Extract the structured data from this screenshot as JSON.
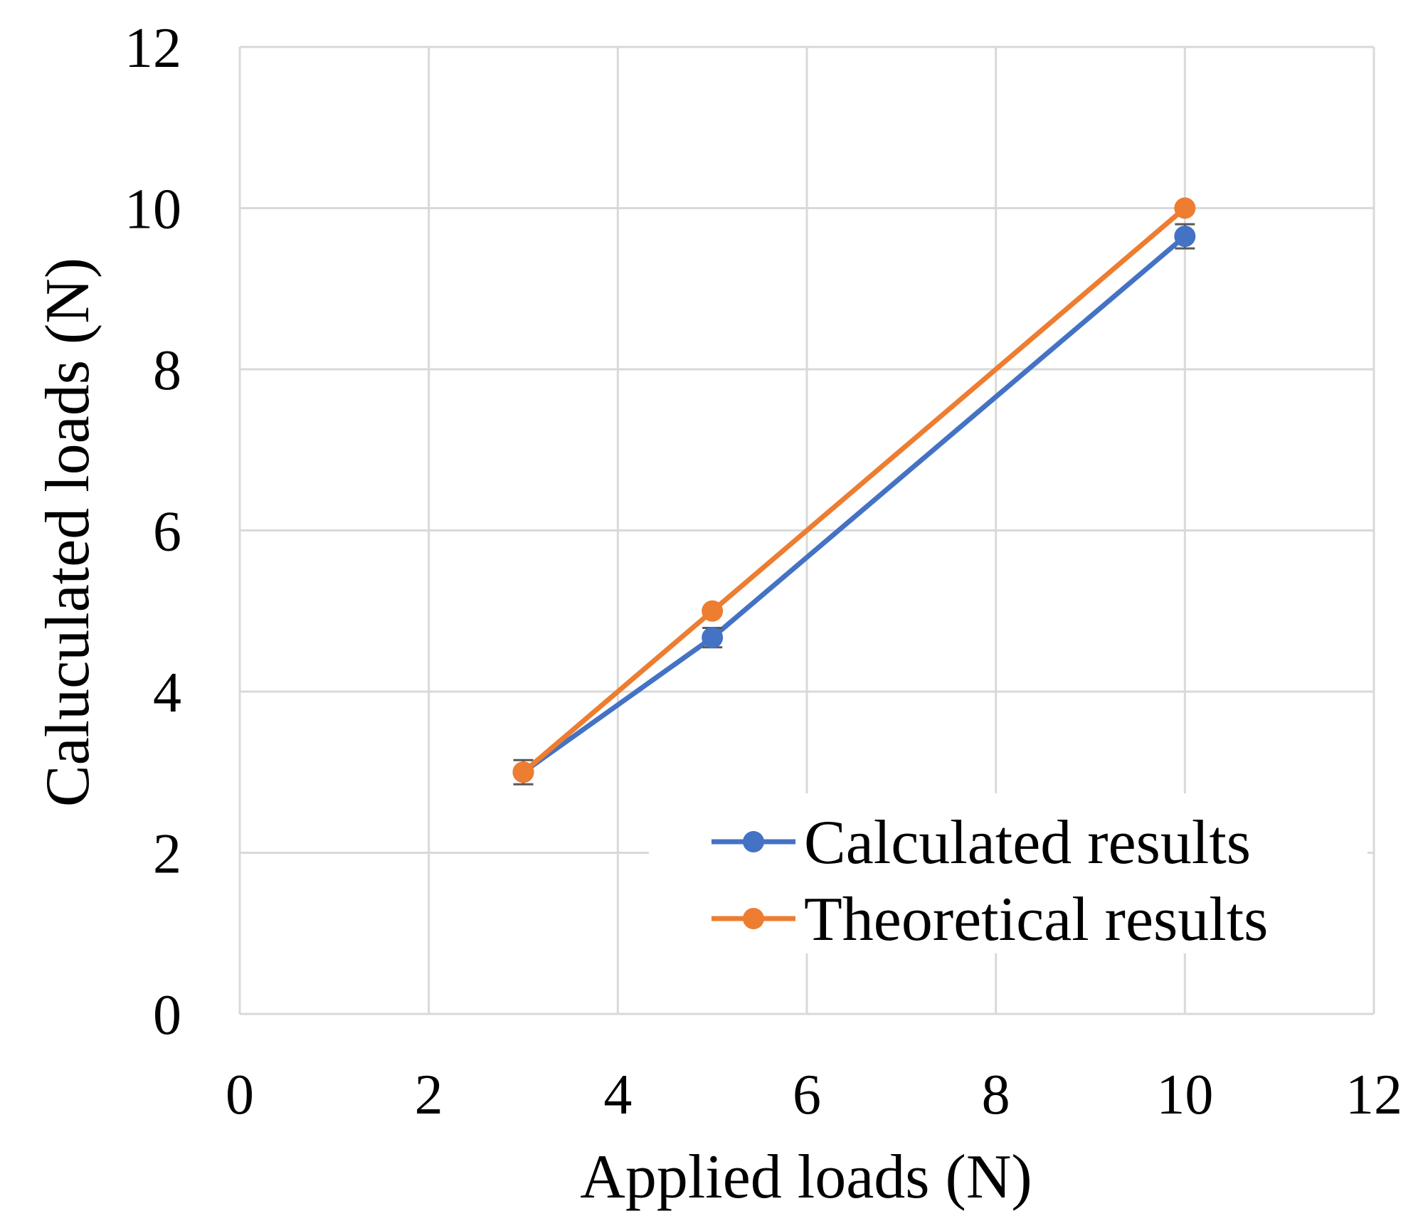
{
  "chart_data": {
    "type": "line",
    "title": "",
    "xlabel": "Applied loads (N)",
    "ylabel": "Caluculated loads (N)",
    "xlim": [
      0,
      12
    ],
    "ylim": [
      0,
      12
    ],
    "x_ticks": [
      "0",
      "2",
      "4",
      "6",
      "8",
      "10",
      "12"
    ],
    "y_ticks": [
      "0",
      "2",
      "4",
      "6",
      "8",
      "10",
      "12"
    ],
    "grid": true,
    "legend_position": "bottom-right",
    "series": [
      {
        "name": "Calculated results",
        "color": "#4472C4",
        "x": [
          3,
          5,
          10
        ],
        "y": [
          3.0,
          4.67,
          9.65
        ],
        "error": [
          0.15,
          0.12,
          0.15
        ]
      },
      {
        "name": "Theoretical results",
        "color": "#ED7D31",
        "x": [
          3,
          5,
          10
        ],
        "y": [
          3,
          5,
          10
        ]
      }
    ]
  }
}
